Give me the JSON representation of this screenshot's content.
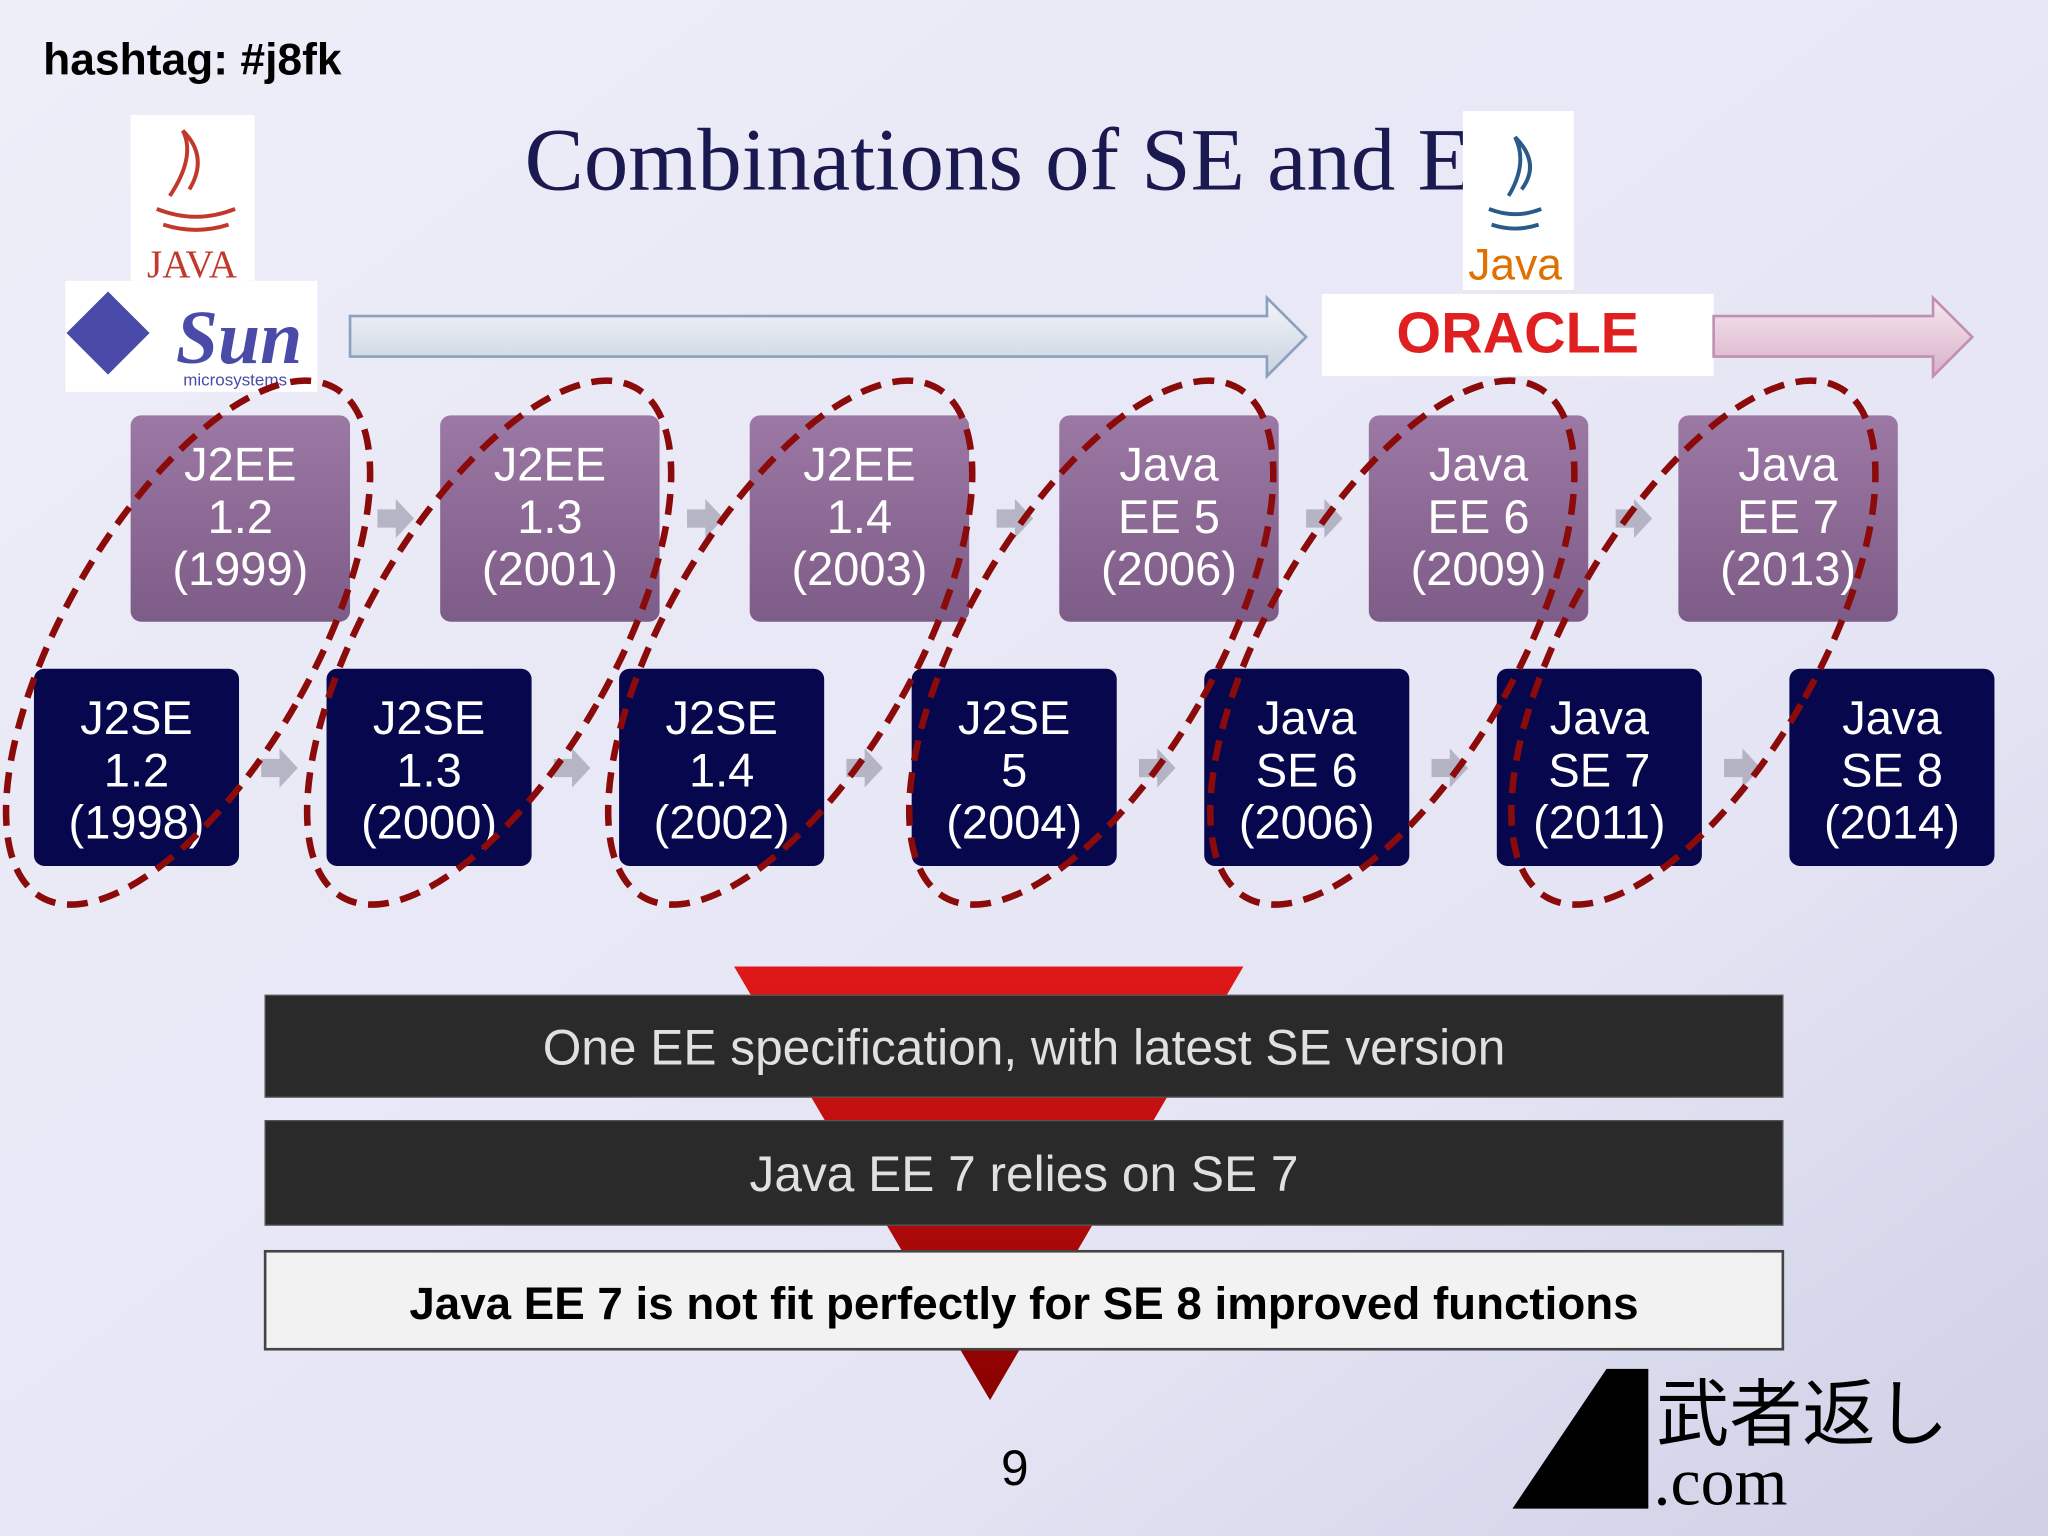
{
  "hashtag": "hashtag: #j8fk",
  "title": "Combinations of SE and EE",
  "logos": {
    "java_left": "JAVA",
    "sun": "Sun",
    "sun_sub": "microsystems",
    "java_right": "Java",
    "oracle": "ORACLE"
  },
  "ee": [
    {
      "lines": [
        "J2EE",
        "1.2",
        "(1999)"
      ]
    },
    {
      "lines": [
        "J2EE",
        "1.3",
        "(2001)"
      ]
    },
    {
      "lines": [
        "J2EE",
        "1.4",
        "(2003)"
      ]
    },
    {
      "lines": [
        "Java",
        "EE 5",
        "(2006)"
      ]
    },
    {
      "lines": [
        "Java",
        "EE 6",
        "(2009)"
      ]
    },
    {
      "lines": [
        "Java",
        "EE 7",
        "(2013)"
      ]
    }
  ],
  "se": [
    {
      "lines": [
        "J2SE",
        "1.2",
        "(1998)"
      ]
    },
    {
      "lines": [
        "J2SE",
        "1.3",
        "(2000)"
      ]
    },
    {
      "lines": [
        "J2SE",
        "1.4",
        "(2002)"
      ]
    },
    {
      "lines": [
        "J2SE",
        "5",
        "(2004)"
      ]
    },
    {
      "lines": [
        "Java",
        "SE 6",
        "(2006)"
      ]
    },
    {
      "lines": [
        "Java",
        "SE 7",
        "(2011)"
      ]
    },
    {
      "lines": [
        "Java",
        "SE 8",
        "(2014)"
      ]
    }
  ],
  "callouts": [
    "One EE specification, with latest SE version",
    "Java EE 7 relies on SE 7"
  ],
  "conclusion": "Java EE 7 is not fit perfectly for SE 8 improved functions",
  "page_number": "9",
  "brand": {
    "name": "武者返し",
    "domain": ".com"
  }
}
